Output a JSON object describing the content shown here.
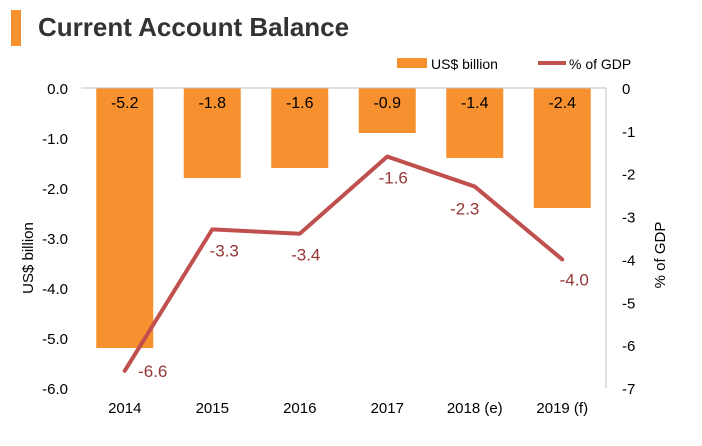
{
  "title": "Current Account Balance",
  "colors": {
    "bar": "#F7902E",
    "line": "#C0504D",
    "line_label": "#943634",
    "title_accent": "#F7902E",
    "text": "#000000"
  },
  "chart_data": {
    "type": "bar",
    "categories": [
      "2014",
      "2015",
      "2016",
      "2017",
      "2018 (e)",
      "2019 (f)"
    ],
    "series": [
      {
        "name": "US$ billion",
        "type": "bar",
        "axis": "left",
        "values": [
          -5.2,
          -1.8,
          -1.6,
          -0.9,
          -1.4,
          -2.4
        ],
        "labels": [
          "-5.2",
          "-1.8",
          "-1.6",
          "-0.9",
          "-1.4",
          "-2.4"
        ]
      },
      {
        "name": "% of GDP",
        "type": "line",
        "axis": "right",
        "values": [
          -6.6,
          -3.3,
          -3.4,
          -1.6,
          -2.3,
          -4.0
        ],
        "labels": [
          "-6.6",
          "-3.3",
          "-3.4",
          "-1.6",
          "-2.3",
          "-4.0"
        ]
      }
    ],
    "left_axis": {
      "label": "US$ billion",
      "range": [
        -6,
        0
      ],
      "ticks": [
        0,
        -1,
        -2,
        -3,
        -4,
        -5,
        -6
      ],
      "tick_labels": [
        "0.0",
        "-1.0",
        "-2.0",
        "-3.0",
        "-4.0",
        "-5.0",
        "-6.0"
      ]
    },
    "right_axis": {
      "label": "% of GDP",
      "range": [
        -7,
        0
      ],
      "ticks": [
        0,
        -1,
        -2,
        -3,
        -4,
        -5,
        -6,
        -7
      ],
      "tick_labels": [
        "0",
        "-1",
        "-2",
        "-3",
        "-4",
        "-5",
        "-6",
        "-7"
      ]
    },
    "legend_position": "top-right",
    "grid": false
  }
}
